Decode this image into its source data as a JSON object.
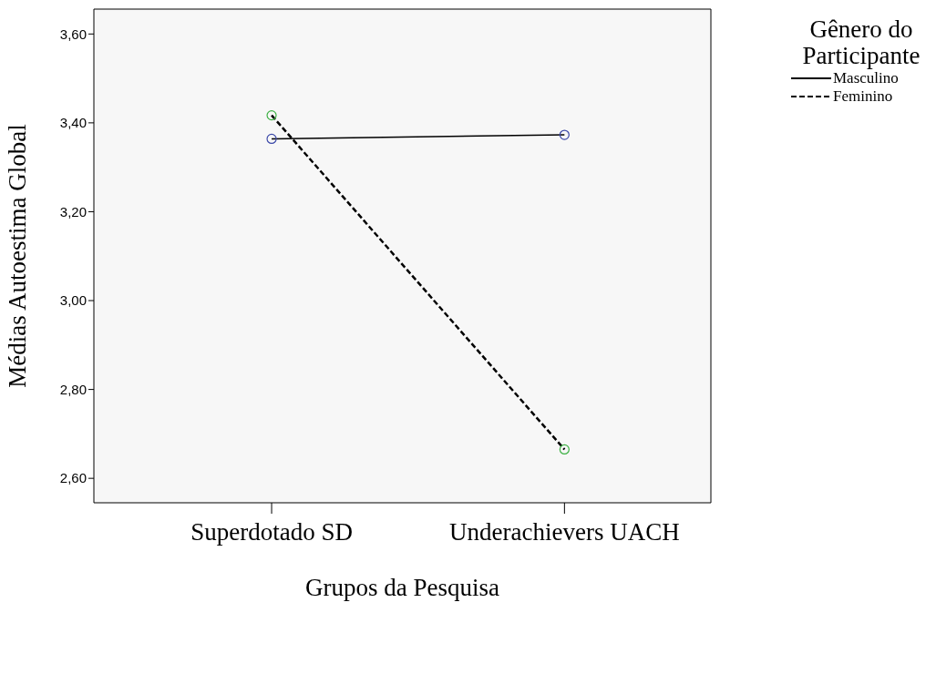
{
  "chart_data": {
    "type": "line",
    "xlabel": "Grupos da Pesquisa",
    "ylabel": "Médias Autoestima Global",
    "legend_title": "Gênero do Participante",
    "categories": [
      "Superdotado SD",
      "Underachievers UACH"
    ],
    "series": [
      {
        "name": "Masculino",
        "color": "#000000",
        "line_style": "solid",
        "colors": [
          "#3b48a8",
          "#3b48a8"
        ],
        "values": [
          3.364,
          3.373
        ]
      },
      {
        "name": "Feminino",
        "color": "#000000",
        "line_style": "dashed",
        "colors": [
          "#3cb043",
          "#3cb043"
        ],
        "values": [
          3.417,
          2.665
        ]
      }
    ],
    "marker": "circle",
    "ylim": [
      2.545,
      3.656
    ],
    "yticks": [
      {
        "value": 2.6,
        "label": "2,60"
      },
      {
        "value": 2.8,
        "label": "2,80"
      },
      {
        "value": 3.0,
        "label": "3,00"
      },
      {
        "value": 3.2,
        "label": "3,20"
      },
      {
        "value": 3.4,
        "label": "3,40"
      },
      {
        "value": 3.6,
        "label": "3,60"
      }
    ],
    "grid": false,
    "legend": "top right"
  }
}
